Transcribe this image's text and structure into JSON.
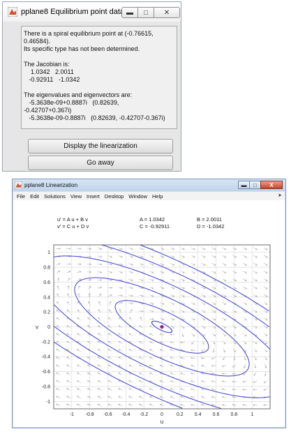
{
  "equilibrium_window": {
    "title": "pplane8 Equilibrium point data",
    "lines": [
      "There is a spiral equilibrium point at (-0.76615,",
      "0.46584).",
      "Its specific type has not been determined.",
      "",
      "The Jacobian is:",
      "    1.0342   2.0011",
      "   -0.92911   -1.0342",
      "",
      "The eigenvalues and eigenvectors are:",
      "   -5.3638e-09+0.8887i   (0.82639,",
      "-0.42707+0.367i)",
      "   -5.3638e-09-0.8887i   (0.82639, -0.42707-0.367i)"
    ],
    "buttons": {
      "linearize": "Display the linearization",
      "go_away": "Go away"
    }
  },
  "linearization_window": {
    "title": "pplane8 Linearization",
    "menu": [
      "File",
      "Edit",
      "Solutions",
      "View",
      "Insert",
      "Desktop",
      "Window",
      "Help"
    ],
    "equations": {
      "u_prime": "u' = A u + B v",
      "v_prime": "v' = C u + D v",
      "A": "A = 1.0342",
      "B": "B = 2.0011",
      "C": "C = -0.92911",
      "D": "D = -1.0342"
    },
    "colors": {
      "trajectory": "#3d3dd6",
      "field_arrow": "#9a9a9a",
      "equilibrium": "#a01c8c"
    }
  },
  "chart_data": {
    "type": "line",
    "xlabel": "u",
    "ylabel": "v",
    "xlim": [
      -1.2,
      1.2
    ],
    "ylim": [
      -1.1,
      1.1
    ],
    "xticks": [
      "-1",
      "-0.8",
      "-0.6",
      "-0.4",
      "-0.2",
      "0",
      "0.2",
      "0.4",
      "0.6",
      "0.8",
      "1"
    ],
    "yticks": [
      "1",
      "0.8",
      "0.6",
      "0.4",
      "0.2",
      "0",
      "-0.2",
      "-0.4",
      "-0.6",
      "-0.8",
      "-1"
    ],
    "grid": true,
    "matrix": {
      "A": 1.0342,
      "B": 2.0011,
      "C": -0.92911,
      "D": -1.0342
    },
    "equilibrium": [
      0,
      0
    ],
    "orbits_start_v": [
      0.05,
      0.23,
      0.43,
      0.62,
      0.81,
      0.98
    ]
  }
}
